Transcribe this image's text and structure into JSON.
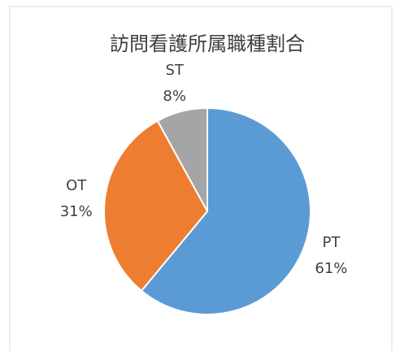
{
  "chart_data": {
    "type": "pie",
    "title": "訪問看護所属職種割合",
    "categories": [
      "PT",
      "OT",
      "ST"
    ],
    "values": [
      61,
      31,
      8
    ],
    "value_labels": [
      "61%",
      "31%",
      "8%"
    ],
    "colors": [
      "#5b9bd5",
      "#ed7d31",
      "#a5a5a5"
    ]
  }
}
